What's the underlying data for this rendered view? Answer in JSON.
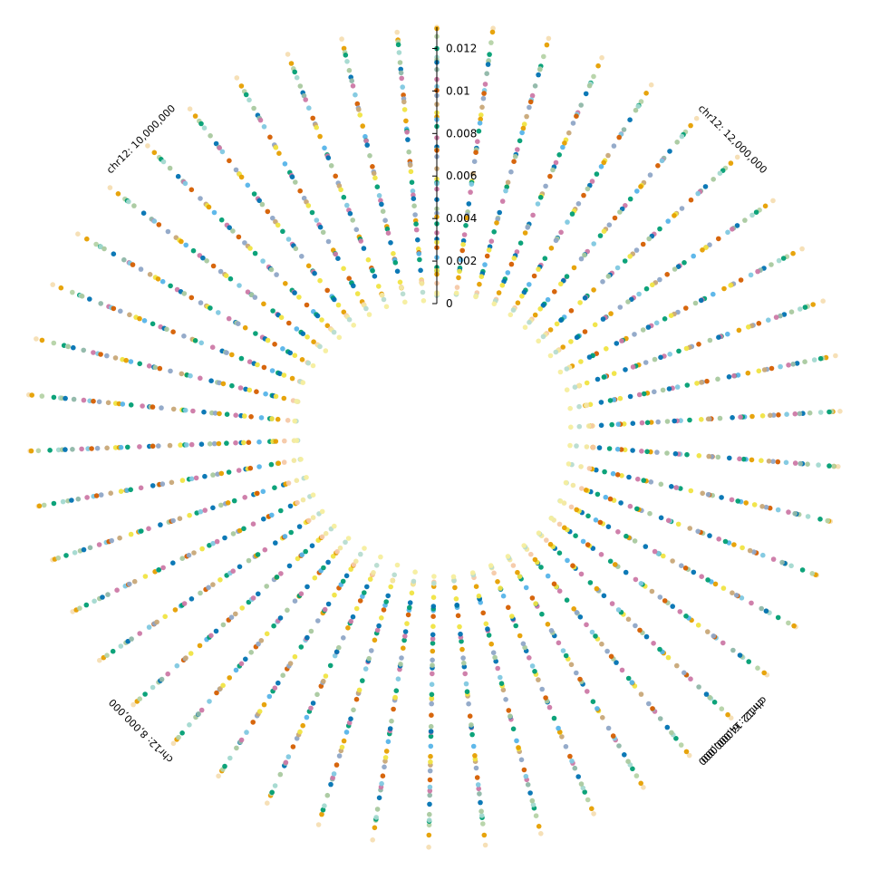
{
  "chart_data": {
    "type": "scatter",
    "layout": "polar (circular genome browser)",
    "chromosome": "chr12",
    "angular_axis": {
      "unit": "base pairs",
      "direction": "clockwise",
      "position_at_top": 11000000,
      "degrees_per_bp": 4.5e-05,
      "labeled_positions": [
        6000000,
        8000000,
        10000000,
        12000000,
        14000000
      ],
      "labels": [
        "chr12: 6,000,000",
        "chr12: 8,000,000",
        "chr12: 10,000,000",
        "chr12: 12,000,000",
        "chr12: 14,000,000"
      ]
    },
    "radial_axis": {
      "range": [
        0,
        0.013
      ],
      "ticks": [
        0,
        0.002,
        0.004,
        0.006,
        0.008,
        0.01,
        0.012
      ],
      "tick_labels": [
        "0",
        "0.002",
        "0.004",
        "0.006",
        "0.008",
        "0.01",
        "0.012"
      ]
    },
    "grid": false,
    "legend": "none",
    "bin_size_bp": 175000,
    "tracks": [
      {
        "level": 0.013,
        "color": "#F5DEB3"
      },
      {
        "level": 0.0127,
        "color": "#E69F00"
      },
      {
        "level": 0.0124,
        "color": "#B5D3A7"
      },
      {
        "level": 0.0121,
        "color": "#009E73"
      },
      {
        "level": 0.0118,
        "color": "#A3D9D0"
      },
      {
        "level": 0.0115,
        "color": "#A9C99F"
      },
      {
        "level": 0.0112,
        "color": "#0072B2"
      },
      {
        "level": 0.0109,
        "color": "#8FB7A8"
      },
      {
        "level": 0.0106,
        "color": "#CC79A7"
      },
      {
        "level": 0.0103,
        "color": "#7FC8E0"
      },
      {
        "level": 0.01,
        "color": "#D55E00"
      },
      {
        "level": 0.0097,
        "color": "#8FA7C7"
      },
      {
        "level": 0.0094,
        "color": "#C8A878"
      },
      {
        "level": 0.0091,
        "color": "#F0E442"
      },
      {
        "level": 0.0088,
        "color": "#E69F00"
      },
      {
        "level": 0.0085,
        "color": "#56B4E9"
      },
      {
        "level": 0.0082,
        "color": "#009E73"
      },
      {
        "level": 0.0079,
        "color": "#CC79A7"
      },
      {
        "level": 0.0076,
        "color": "#0072B2"
      },
      {
        "level": 0.0073,
        "color": "#A9C99F"
      },
      {
        "level": 0.007,
        "color": "#D55E00"
      },
      {
        "level": 0.0067,
        "color": "#8FA7C7"
      },
      {
        "level": 0.0064,
        "color": "#C8A878"
      },
      {
        "level": 0.0061,
        "color": "#F0E442"
      },
      {
        "level": 0.0058,
        "color": "#009E73"
      },
      {
        "level": 0.0055,
        "color": "#7FC8E0"
      },
      {
        "level": 0.0052,
        "color": "#CC79A7"
      },
      {
        "level": 0.0049,
        "color": "#0072B2"
      },
      {
        "level": 0.0046,
        "color": "#A9C99F"
      },
      {
        "level": 0.0043,
        "color": "#8FA7C7"
      },
      {
        "level": 0.004,
        "color": "#E69F00"
      },
      {
        "level": 0.0037,
        "color": "#009E73"
      },
      {
        "level": 0.0034,
        "color": "#CC79A7"
      },
      {
        "level": 0.0031,
        "color": "#0072B2"
      },
      {
        "level": 0.0028,
        "color": "#F0E442"
      },
      {
        "level": 0.0025,
        "color": "#D55E00"
      },
      {
        "level": 0.0022,
        "color": "#56B4E9"
      },
      {
        "level": 0.0019,
        "color": "#009E73"
      },
      {
        "level": 0.00165,
        "color": "#0072B2"
      },
      {
        "level": 0.0014,
        "color": "#F0E442"
      },
      {
        "level": 0.00115,
        "color": "#E69F00"
      },
      {
        "level": 0.00095,
        "color": "#F5C9A8"
      },
      {
        "level": 0.00075,
        "color": "#F2E8A0"
      },
      {
        "level": 0.00055,
        "color": "#B7DCD0"
      },
      {
        "level": 0.00035,
        "color": "#F6EE9E"
      }
    ]
  }
}
